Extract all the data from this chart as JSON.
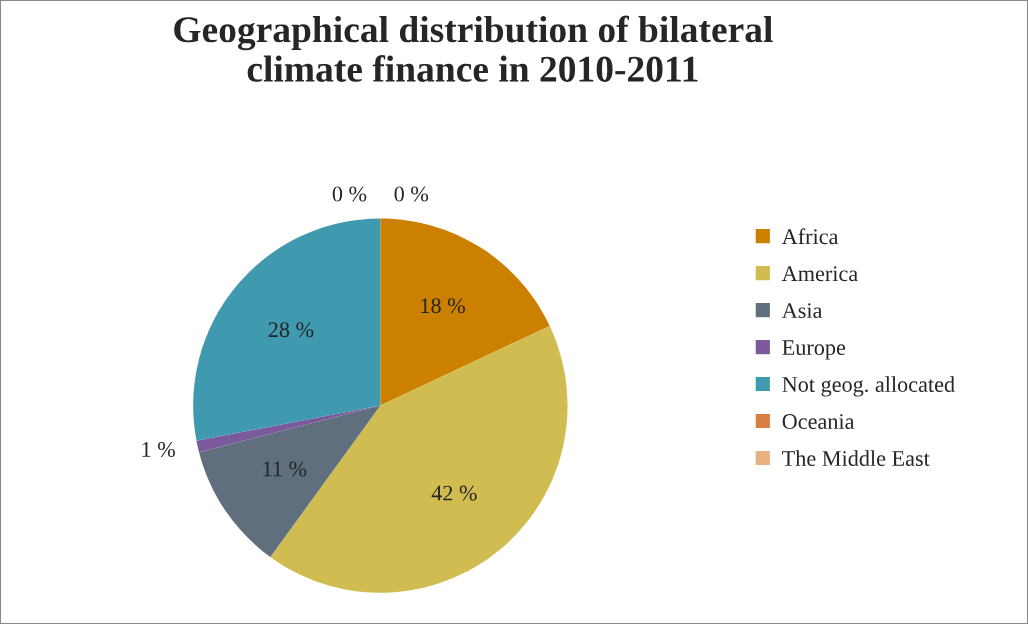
{
  "chart_data": {
    "type": "pie",
    "title": "Geographical distribution of bilateral\nclimate finance in 2010-2011",
    "categories": [
      "Africa",
      "America",
      "Asia",
      "Europe",
      "Not geog. allocated",
      "Oceania",
      "The Middle East"
    ],
    "values": [
      18,
      42,
      11,
      1,
      28,
      0,
      0
    ],
    "colors": [
      "#cc8000",
      "#d0bc50",
      "#5f6f7e",
      "#7a5a9a",
      "#3f9ab0",
      "#d98040",
      "#eab080"
    ],
    "value_labels": [
      "18 %",
      "42 %",
      "11 %",
      "1 %",
      "28 %",
      "0 %",
      "0 %"
    ],
    "legend": "right"
  }
}
